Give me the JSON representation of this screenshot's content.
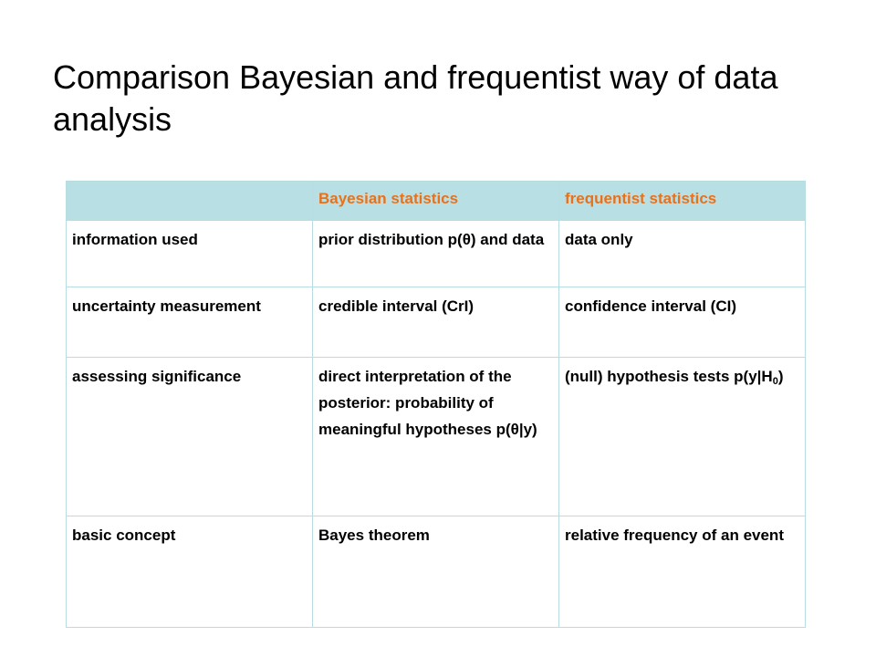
{
  "slide": {
    "title": "Comparison Bayesian and frequentist way of data analysis"
  },
  "table": {
    "headers": [
      "",
      "Bayesian statistics",
      "frequentist statistics"
    ],
    "header_color": "#e8711c",
    "header_background": "#b8e0e4",
    "rows": [
      {
        "label": "information used",
        "bayesian": "prior distribution p(θ) and data",
        "frequentist": "data only"
      },
      {
        "label": "uncertainty measurement",
        "bayesian": "credible interval (CrI)",
        "frequentist": "confidence interval (CI)"
      },
      {
        "label": "assessing significance",
        "bayesian": "direct interpretation of the posterior: probability of meaningful hypotheses p(θ|y)",
        "frequentist": "(null) hypothesis tests",
        "frequentist_formula_prefix": "p(y|H",
        "frequentist_formula_sub": "0",
        "frequentist_formula_suffix": ")"
      },
      {
        "label": "basic concept",
        "bayesian": "Bayes theorem",
        "frequentist": "relative frequency of an event"
      }
    ]
  }
}
